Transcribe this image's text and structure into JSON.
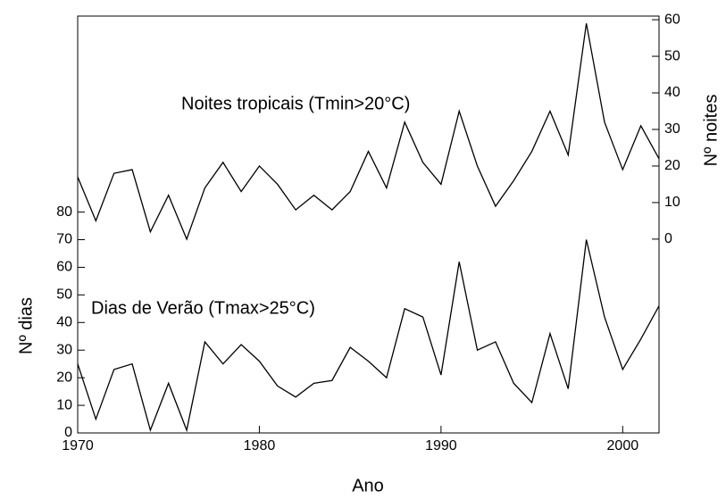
{
  "chart_data": {
    "type": "line",
    "annotations": [
      "Noites tropicais (Tmin>20°C)",
      "Dias de Verão (Tmax>25°C)"
    ],
    "x_label": "Ano",
    "y_label": "Nº dias",
    "y2_label": "Nº noites",
    "x": [
      1970,
      1971,
      1972,
      1973,
      1974,
      1975,
      1976,
      1977,
      1978,
      1979,
      1980,
      1981,
      1982,
      1983,
      1984,
      1985,
      1986,
      1987,
      1988,
      1989,
      1990,
      1991,
      1992,
      1993,
      1994,
      1995,
      1996,
      1997,
      1998,
      1999,
      2000,
      2001,
      2002
    ],
    "series": [
      {
        "name": "Dias de Verão",
        "color": "#000000",
        "axis": "y",
        "values": [
          25,
          5,
          23,
          25,
          1,
          18,
          1,
          33,
          25,
          32,
          26,
          17,
          13,
          18,
          19,
          31,
          26,
          20,
          45,
          42,
          21,
          62,
          30,
          33,
          18,
          11,
          36,
          16,
          70,
          42,
          23,
          34,
          46
        ]
      },
      {
        "name": "Noites tropicais",
        "color": "#000000",
        "axis": "y2",
        "values": [
          17,
          5,
          18,
          19,
          2,
          12,
          0,
          14,
          21,
          13,
          20,
          15,
          8,
          12,
          8,
          13,
          24,
          14,
          32,
          21,
          15,
          35,
          20,
          9,
          16,
          24,
          35,
          23,
          59,
          32,
          19,
          31,
          22
        ]
      }
    ],
    "xlim": [
      1970,
      2002
    ],
    "xticks": [
      1970,
      1980,
      1990,
      2000
    ],
    "ylim": [
      0,
      151
    ],
    "yticks": [
      0,
      10,
      20,
      30,
      40,
      50,
      60,
      70,
      80
    ],
    "y2lim": [
      -53,
      61
    ],
    "y2ticks": [
      0,
      10,
      20,
      30,
      40,
      50,
      60
    ]
  }
}
